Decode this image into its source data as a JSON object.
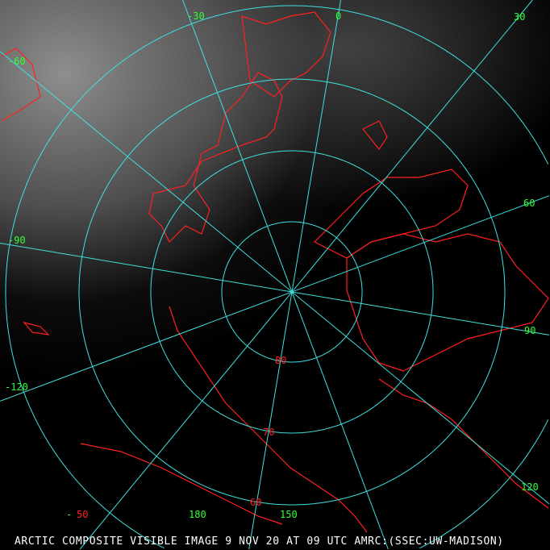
{
  "caption": "ARCTIC COMPOSITE VISIBLE IMAGE 9 NOV 20 AT 09 UTC AMRC:(SSEC:UW-MADISON)",
  "colors": {
    "grid": "#40e0e0",
    "coast": "#ff2020",
    "longitude_labels": "#33ff33",
    "latitude_labels": "#ff2020"
  },
  "longitude_labels": [
    "-30",
    "0",
    "30",
    "-60",
    "60",
    "-90",
    "90",
    "-120",
    "120",
    "-",
    "180",
    "150"
  ],
  "latitude_labels": [
    "80",
    "70",
    "60",
    "50"
  ]
}
